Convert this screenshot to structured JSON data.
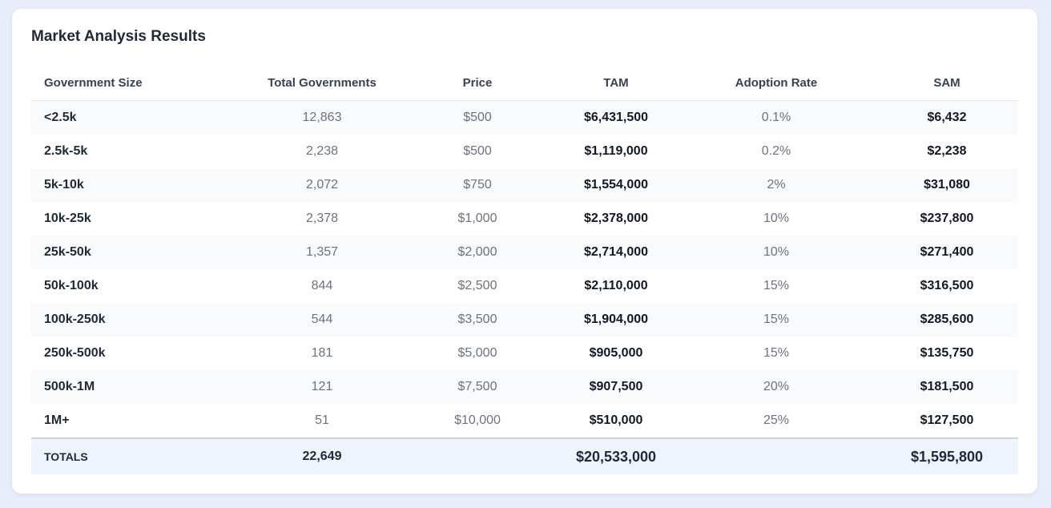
{
  "header": {
    "title": "Market Analysis Results"
  },
  "table": {
    "headers": [
      "Government Size",
      "Total Governments",
      "Price",
      "TAM",
      "Adoption Rate",
      "SAM"
    ],
    "rows": [
      [
        "<2.5k",
        "12,863",
        "$500",
        "$6,431,500",
        "0.1%",
        "$6,432"
      ],
      [
        "2.5k-5k",
        "2,238",
        "$500",
        "$1,119,000",
        "0.2%",
        "$2,238"
      ],
      [
        "5k-10k",
        "2,072",
        "$750",
        "$1,554,000",
        "2%",
        "$31,080"
      ],
      [
        "10k-25k",
        "2,378",
        "$1,000",
        "$2,378,000",
        "10%",
        "$237,800"
      ],
      [
        "25k-50k",
        "1,357",
        "$2,000",
        "$2,714,000",
        "10%",
        "$271,400"
      ],
      [
        "50k-100k",
        "844",
        "$2,500",
        "$2,110,000",
        "15%",
        "$316,500"
      ],
      [
        "100k-250k",
        "544",
        "$3,500",
        "$1,904,000",
        "15%",
        "$285,600"
      ],
      [
        "250k-500k",
        "181",
        "$5,000",
        "$905,000",
        "15%",
        "$135,750"
      ],
      [
        "500k-1M",
        "121",
        "$7,500",
        "$907,500",
        "20%",
        "$181,500"
      ],
      [
        "1M+",
        "51",
        "$10,000",
        "$510,000",
        "25%",
        "$127,500"
      ]
    ],
    "totals": {
      "label": "TOTALS",
      "total_governments": "22,649",
      "tam": "$20,533,000",
      "sam": "$1,595,800"
    }
  }
}
